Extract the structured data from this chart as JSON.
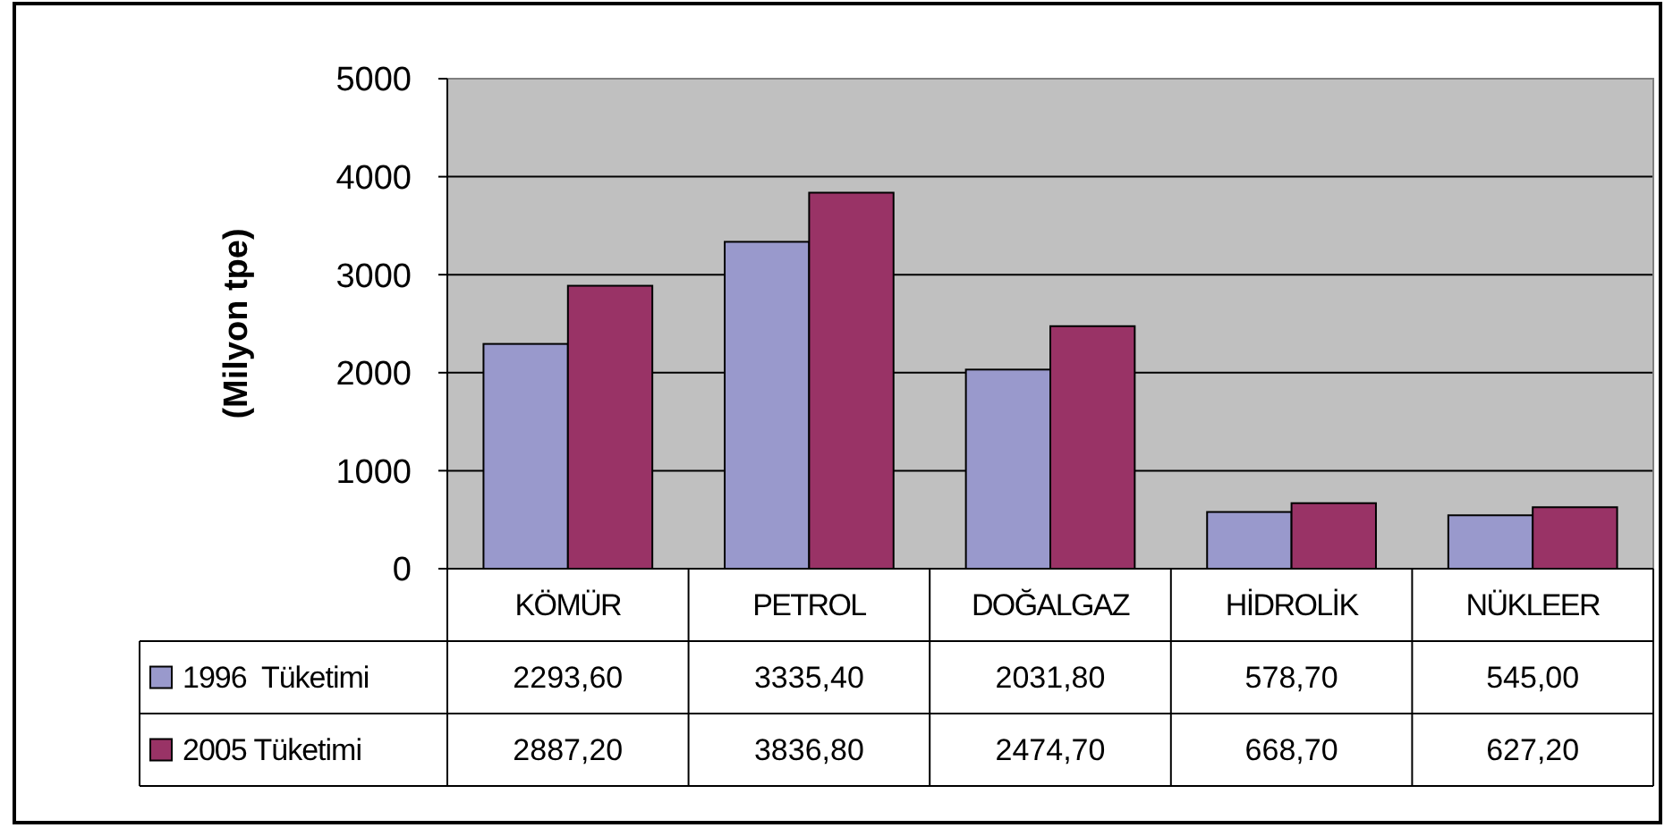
{
  "chart_data": {
    "type": "bar",
    "ylabel": "(Milyon tpe)",
    "categories": [
      "KÖMÜR",
      "PETROL",
      "DOĞALGAZ",
      "HİDROLİK",
      "NÜKLEER"
    ],
    "series": [
      {
        "name": "1996  Tüketimi",
        "color": "#9999cc",
        "values": [
          2293.6,
          3335.4,
          2031.8,
          578.7,
          545.0
        ],
        "value_labels": [
          "2293,60",
          "3335,40",
          "2031,80",
          "578,70",
          "545,00"
        ]
      },
      {
        "name": "2005 Tüketimi",
        "color": "#993366",
        "values": [
          2887.2,
          3836.8,
          2474.7,
          668.7,
          627.2
        ],
        "value_labels": [
          "2887,20",
          "3836,80",
          "2474,70",
          "668,70",
          "627,20"
        ]
      }
    ],
    "ylim": [
      0,
      5000
    ],
    "yticks": [
      0,
      1000,
      2000,
      3000,
      4000,
      5000
    ],
    "grid": "y",
    "legend": "bottom"
  }
}
